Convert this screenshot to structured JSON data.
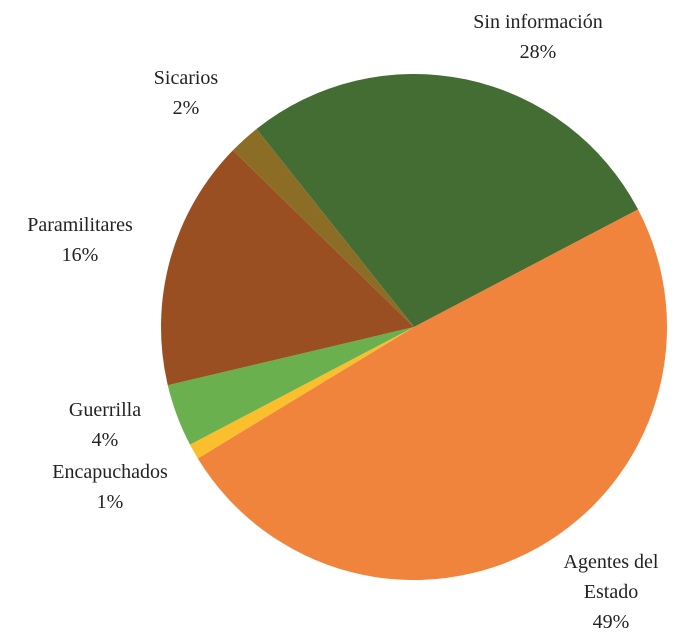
{
  "chart_data": {
    "type": "pie",
    "categories": [
      "Sin información",
      "Agentes del Estado",
      "Encapuchados",
      "Guerrilla",
      "Paramilitares",
      "Sicarios"
    ],
    "values": [
      28,
      49,
      1,
      4,
      16,
      2
    ],
    "value_labels": [
      "28%",
      "49%",
      "1%",
      "4%",
      "16%",
      "2%"
    ],
    "colors": [
      "#436d32",
      "#f0843c",
      "#fbbf2e",
      "#6ab04f",
      "#9a4f22",
      "#8b6d25"
    ]
  }
}
